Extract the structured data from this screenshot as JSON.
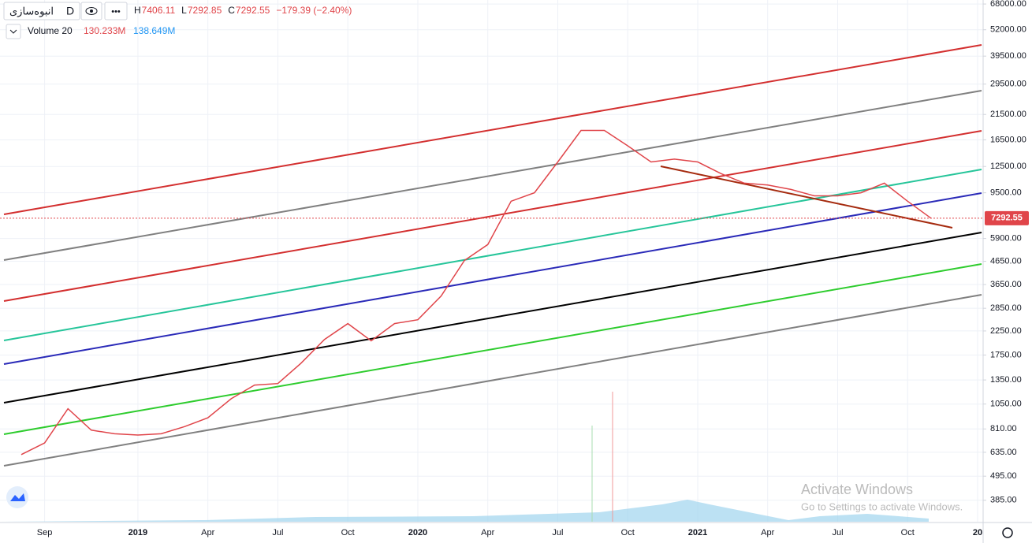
{
  "header": {
    "symbol": "انبوه‌سازی",
    "interval": "D",
    "ohlc": [
      {
        "label": "H",
        "value": 7406.11
      },
      {
        "label": "L",
        "value": 7292.85
      },
      {
        "label": "C",
        "value": 7292.55
      }
    ],
    "change": "−179.39 (−2.40%)",
    "volume_label": "Volume 20",
    "volume_values": [
      "130.233M",
      "138.649M"
    ]
  },
  "watermark": [
    "Activate Windows",
    "Go to Settings to activate Windows."
  ],
  "chart_data": {
    "type": "line",
    "color": "#e0454a",
    "log_scale": true,
    "grid": true,
    "categories": [
      null,
      "Sep",
      null,
      null,
      null,
      "2019",
      null,
      null,
      "Apr",
      null,
      null,
      "Jul",
      null,
      null,
      "Oct",
      null,
      null,
      "2020",
      null,
      null,
      "Apr",
      null,
      null,
      "Jul",
      null,
      null,
      "Oct",
      null,
      null,
      "2021",
      null,
      null,
      "Apr",
      null,
      null,
      "Jul",
      null,
      null,
      "Oct",
      null,
      null,
      "20"
    ],
    "values": [
      620,
      700,
      1000,
      800,
      770,
      760,
      770,
      830,
      910,
      1110,
      1280,
      1300,
      1610,
      2060,
      2430,
      2030,
      2430,
      2530,
      3240,
      4690,
      5540,
      8700,
      9500,
      13100,
      18200,
      18200,
      15500,
      13100,
      13500,
      13100,
      11600,
      10500,
      10300,
      9840,
      9200,
      9200,
      9500,
      10500,
      8700,
      7292.55,
      null,
      null
    ],
    "ylim": [
      313,
      70900
    ],
    "yticks": [
      {
        "value": 68000,
        "label": "68000.00"
      },
      {
        "value": 52000,
        "label": "52000.00"
      },
      {
        "value": 39500,
        "label": "39500.00"
      },
      {
        "value": 29500,
        "label": "29500.00"
      },
      {
        "value": 21500,
        "label": "21500.00"
      },
      {
        "value": 16500,
        "label": "16500.00"
      },
      {
        "value": 12500,
        "label": "12500.00"
      },
      {
        "value": 9500,
        "label": "9500.00"
      },
      {
        "value": 5900,
        "label": "5900.00"
      },
      {
        "value": 4650,
        "label": "4650.00"
      },
      {
        "value": 3650,
        "label": "3650.00"
      },
      {
        "value": 2850,
        "label": "2850.00"
      },
      {
        "value": 2250,
        "label": "2250.00"
      },
      {
        "value": 1750,
        "label": "1750.00"
      },
      {
        "value": 1350,
        "label": "1350.00"
      },
      {
        "value": 1050,
        "label": "1050.00"
      },
      {
        "value": 810,
        "label": "810.00"
      },
      {
        "value": 635,
        "label": "635.00"
      },
      {
        "value": 495,
        "label": "495.00"
      },
      {
        "value": 385,
        "label": "385.00"
      }
    ],
    "last_price": 7292.55
  }
}
